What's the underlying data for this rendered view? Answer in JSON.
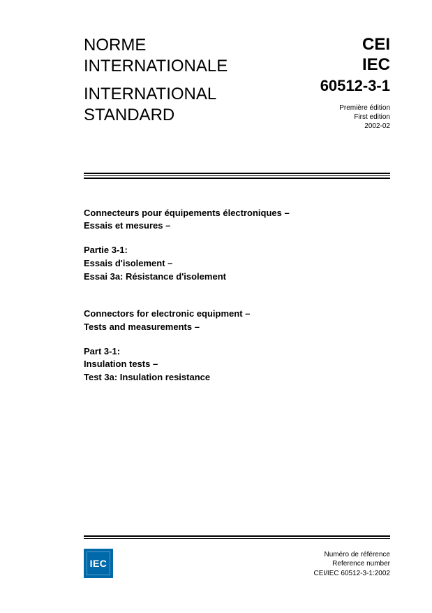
{
  "header": {
    "left_line1": "NORME",
    "left_line2": "INTERNATIONALE",
    "left_line3": "INTERNATIONAL",
    "left_line4": "STANDARD",
    "org_fr": "CEI",
    "org_en": "IEC",
    "std_number": "60512-3-1",
    "edition_fr": "Première édition",
    "edition_en": "First edition",
    "edition_date": "2002-02"
  },
  "titles": {
    "fr": {
      "line1": "Connecteurs pour équipements électroniques –",
      "line2": "Essais et mesures –",
      "line3": "Partie 3-1:",
      "line4": "Essais d'isolement –",
      "line5": "Essai 3a: Résistance d'isolement"
    },
    "en": {
      "line1": "Connectors for electronic equipment –",
      "line2": "Tests and measurements –",
      "line3": "Part 3-1:",
      "line4": "Insulation tests –",
      "line5": "Test 3a: Insulation resistance"
    }
  },
  "footer": {
    "logo_text": "IEC",
    "logo_bg": "#0069aa",
    "ref_label_fr": "Numéro de référence",
    "ref_label_en": "Reference number",
    "ref_number": "CEI/IEC 60512-3-1:2002"
  },
  "style": {
    "page_bg": "#ffffff",
    "text_color": "#000000",
    "rule_color": "#000000",
    "header_fontsize": 24,
    "stdnum_fontsize": 22,
    "edition_fontsize": 10,
    "title_fontsize": 13,
    "ref_fontsize": 10
  }
}
